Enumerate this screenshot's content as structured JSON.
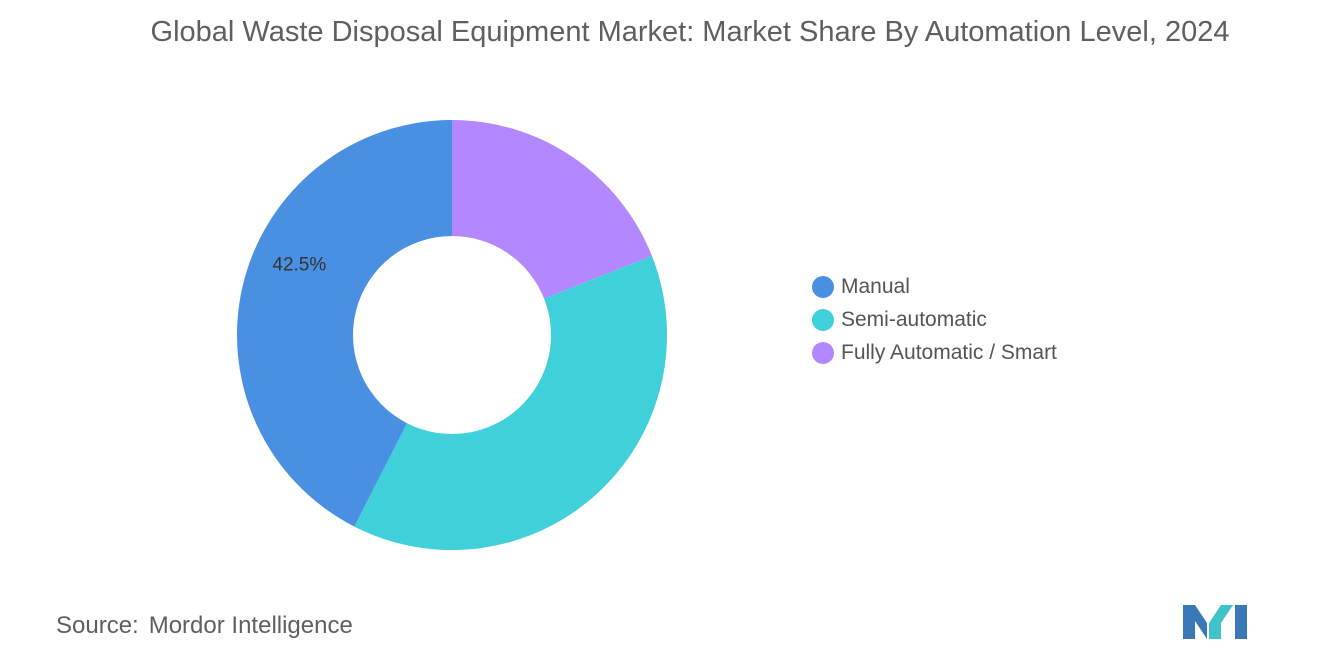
{
  "chart_data": {
    "type": "pie",
    "title": "Global Waste Disposal Equipment Market: Market Share By Automation Level, 2024",
    "categories": [
      "Manual",
      "Semi-automatic",
      "Fully Automatic / Smart"
    ],
    "values": [
      42.5,
      38.5,
      19.0
    ],
    "data_labels": [
      "42.5%",
      "",
      ""
    ],
    "colors": [
      "#4a90e2",
      "#3fd0d9",
      "#b388ff"
    ],
    "donut": true,
    "legend_placement": "right"
  },
  "source": {
    "label": "Source:",
    "value": "Mordor Intelligence"
  },
  "logo": {
    "icon": "mordor-intelligence-logo-icon"
  }
}
